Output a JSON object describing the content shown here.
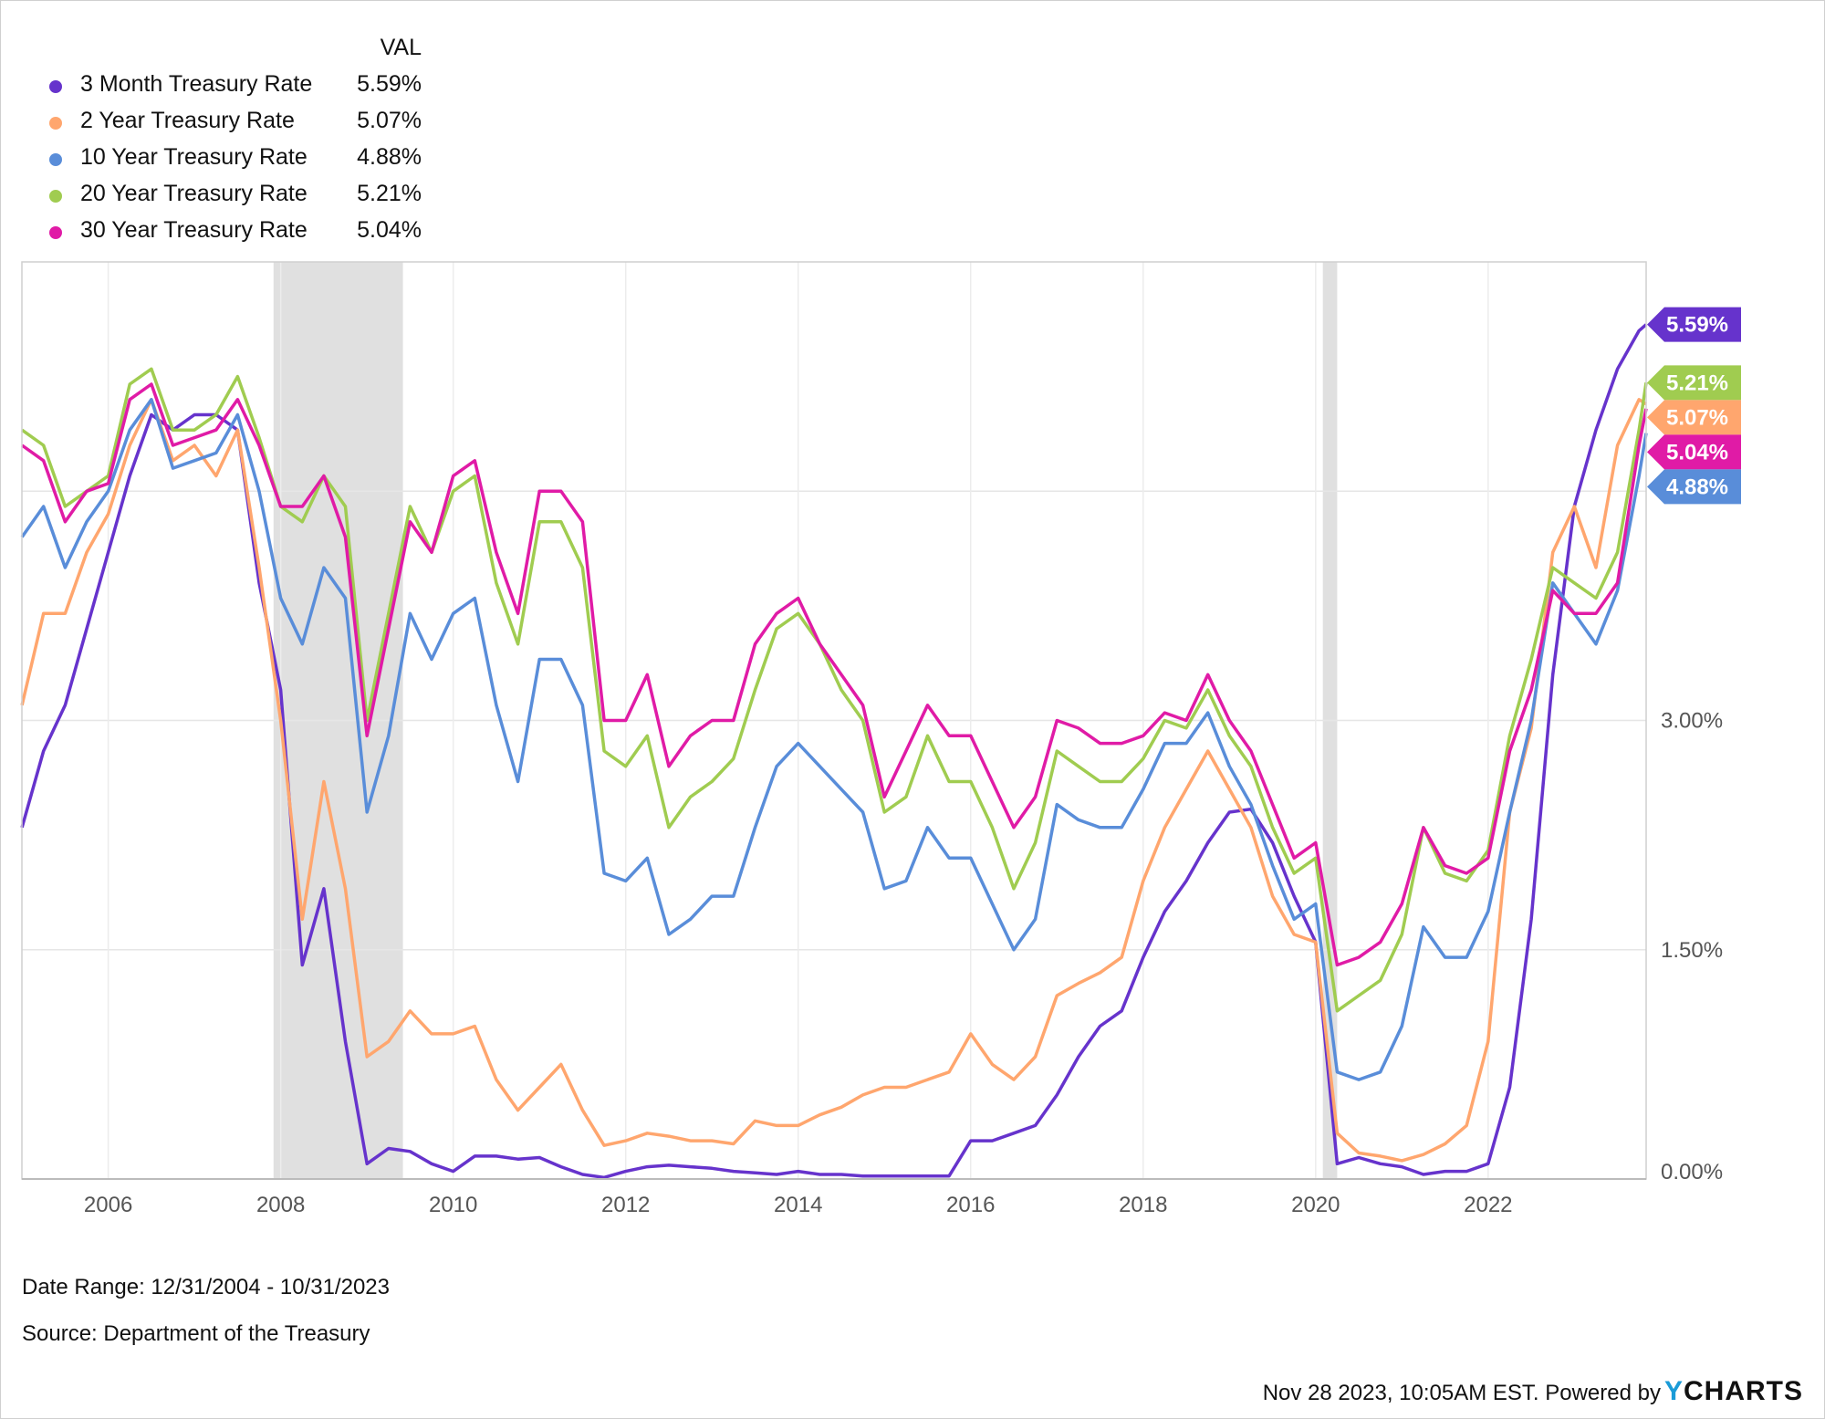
{
  "legend": {
    "header": "VAL",
    "items": [
      {
        "label": "3 Month Treasury Rate",
        "value": "5.59%",
        "color": "#6633cc"
      },
      {
        "label": "2 Year Treasury Rate",
        "value": "5.07%",
        "color": "#ffa66e"
      },
      {
        "label": "10 Year Treasury Rate",
        "value": "4.88%",
        "color": "#598dd9"
      },
      {
        "label": "20 Year Treasury Rate",
        "value": "5.21%",
        "color": "#a0cc50"
      },
      {
        "label": "30 Year Treasury Rate",
        "value": "5.04%",
        "color": "#e01ba6"
      }
    ]
  },
  "footer": {
    "date_range": "Date Range: 12/31/2004 - 10/31/2023",
    "source": "Source: Department of the Treasury",
    "timestamp": "Nov 28 2023, 10:05AM EST. Powered by",
    "brand_y": "Y",
    "brand_rest": "CHARTS"
  },
  "chart_data": {
    "type": "line",
    "xlabel": "",
    "ylabel": "",
    "xlim": [
      "2004-12-31",
      "2023-10-31"
    ],
    "ylim": [
      0,
      6
    ],
    "y_ticks": [
      0,
      1.5,
      3.0
    ],
    "y_tick_labels": [
      "0.00%",
      "1.50%",
      "3.00%"
    ],
    "y_gridlines": [
      0,
      1.5,
      3.0,
      4.5
    ],
    "x_ticks": [
      "2006",
      "2008",
      "2010",
      "2012",
      "2014",
      "2016",
      "2018",
      "2020",
      "2022"
    ],
    "grid": true,
    "legend_position": "top-left",
    "recessions": [
      [
        "2007-12",
        "2009-06"
      ],
      [
        "2020-02",
        "2020-04"
      ]
    ],
    "end_labels": [
      "5.59%",
      "5.21%",
      "5.07%",
      "5.04%",
      "4.88%"
    ],
    "x": [
      "2005-01",
      "2005-04",
      "2005-07",
      "2005-10",
      "2006-01",
      "2006-04",
      "2006-07",
      "2006-10",
      "2007-01",
      "2007-04",
      "2007-07",
      "2007-10",
      "2008-01",
      "2008-04",
      "2008-07",
      "2008-10",
      "2009-01",
      "2009-04",
      "2009-07",
      "2009-10",
      "2010-01",
      "2010-04",
      "2010-07",
      "2010-10",
      "2011-01",
      "2011-04",
      "2011-07",
      "2011-10",
      "2012-01",
      "2012-04",
      "2012-07",
      "2012-10",
      "2013-01",
      "2013-04",
      "2013-07",
      "2013-10",
      "2014-01",
      "2014-04",
      "2014-07",
      "2014-10",
      "2015-01",
      "2015-04",
      "2015-07",
      "2015-10",
      "2016-01",
      "2016-04",
      "2016-07",
      "2016-10",
      "2017-01",
      "2017-04",
      "2017-07",
      "2017-10",
      "2018-01",
      "2018-04",
      "2018-07",
      "2018-10",
      "2019-01",
      "2019-04",
      "2019-07",
      "2019-10",
      "2020-01",
      "2020-04",
      "2020-07",
      "2020-10",
      "2021-01",
      "2021-04",
      "2021-07",
      "2021-10",
      "2022-01",
      "2022-04",
      "2022-07",
      "2022-10",
      "2023-01",
      "2023-04",
      "2023-07",
      "2023-10",
      "2023-10-31"
    ],
    "series": [
      {
        "name": "3 Month Treasury Rate",
        "color": "#6633cc",
        "values": [
          2.3,
          2.8,
          3.1,
          3.6,
          4.1,
          4.6,
          5.0,
          4.9,
          5.0,
          5.0,
          4.9,
          3.9,
          3.2,
          1.4,
          1.9,
          0.9,
          0.1,
          0.2,
          0.18,
          0.1,
          0.05,
          0.15,
          0.15,
          0.13,
          0.14,
          0.08,
          0.03,
          0.01,
          0.05,
          0.08,
          0.09,
          0.08,
          0.07,
          0.05,
          0.04,
          0.03,
          0.05,
          0.03,
          0.03,
          0.02,
          0.02,
          0.02,
          0.02,
          0.02,
          0.25,
          0.25,
          0.3,
          0.35,
          0.55,
          0.8,
          1.0,
          1.1,
          1.45,
          1.75,
          1.95,
          2.2,
          2.4,
          2.42,
          2.2,
          1.85,
          1.55,
          0.1,
          0.14,
          0.1,
          0.08,
          0.03,
          0.05,
          0.05,
          0.1,
          0.6,
          1.7,
          3.3,
          4.4,
          4.9,
          5.3,
          5.55,
          5.59
        ]
      },
      {
        "name": "2 Year Treasury Rate",
        "color": "#ffa66e",
        "values": [
          3.1,
          3.7,
          3.7,
          4.1,
          4.35,
          4.8,
          5.1,
          4.7,
          4.8,
          4.6,
          4.9,
          4.0,
          3.0,
          1.7,
          2.6,
          1.9,
          0.8,
          0.9,
          1.1,
          0.95,
          0.95,
          1.0,
          0.65,
          0.45,
          0.6,
          0.75,
          0.45,
          0.22,
          0.25,
          0.3,
          0.28,
          0.25,
          0.25,
          0.23,
          0.38,
          0.35,
          0.35,
          0.42,
          0.47,
          0.55,
          0.6,
          0.6,
          0.65,
          0.7,
          0.95,
          0.75,
          0.65,
          0.8,
          1.2,
          1.28,
          1.35,
          1.45,
          1.95,
          2.3,
          2.55,
          2.8,
          2.55,
          2.3,
          1.85,
          1.6,
          1.55,
          0.3,
          0.17,
          0.15,
          0.12,
          0.16,
          0.23,
          0.35,
          0.9,
          2.4,
          2.95,
          4.1,
          4.4,
          4.0,
          4.8,
          5.1,
          5.07
        ]
      },
      {
        "name": "10 Year Treasury Rate",
        "color": "#598dd9",
        "values": [
          4.2,
          4.4,
          4.0,
          4.3,
          4.5,
          4.9,
          5.1,
          4.65,
          4.7,
          4.75,
          5.0,
          4.5,
          3.8,
          3.5,
          4.0,
          3.8,
          2.4,
          2.9,
          3.7,
          3.4,
          3.7,
          3.8,
          3.1,
          2.6,
          3.4,
          3.4,
          3.1,
          2.0,
          1.95,
          2.1,
          1.6,
          1.7,
          1.85,
          1.85,
          2.3,
          2.7,
          2.85,
          2.7,
          2.55,
          2.4,
          1.9,
          1.95,
          2.3,
          2.1,
          2.1,
          1.8,
          1.5,
          1.7,
          2.45,
          2.35,
          2.3,
          2.3,
          2.55,
          2.85,
          2.85,
          3.05,
          2.7,
          2.45,
          2.05,
          1.7,
          1.8,
          0.7,
          0.65,
          0.7,
          1.0,
          1.65,
          1.45,
          1.45,
          1.75,
          2.4,
          3.0,
          3.9,
          3.7,
          3.5,
          3.85,
          4.6,
          4.88
        ]
      },
      {
        "name": "20 Year Treasury Rate",
        "color": "#a0cc50",
        "values": [
          4.9,
          4.8,
          4.4,
          4.5,
          4.6,
          5.2,
          5.3,
          4.9,
          4.9,
          5.0,
          5.25,
          4.85,
          4.4,
          4.3,
          4.6,
          4.4,
          3.0,
          3.7,
          4.4,
          4.1,
          4.5,
          4.6,
          3.9,
          3.5,
          4.3,
          4.3,
          4.0,
          2.8,
          2.7,
          2.9,
          2.3,
          2.5,
          2.6,
          2.75,
          3.2,
          3.6,
          3.7,
          3.5,
          3.2,
          3.0,
          2.4,
          2.5,
          2.9,
          2.6,
          2.6,
          2.3,
          1.9,
          2.2,
          2.8,
          2.7,
          2.6,
          2.6,
          2.75,
          3.0,
          2.95,
          3.2,
          2.9,
          2.7,
          2.3,
          2.0,
          2.1,
          1.1,
          1.2,
          1.3,
          1.6,
          2.3,
          2.0,
          1.95,
          2.15,
          2.9,
          3.4,
          4.0,
          3.9,
          3.8,
          4.1,
          4.9,
          5.21
        ]
      },
      {
        "name": "30 Year Treasury Rate",
        "color": "#e01ba6",
        "values": [
          4.8,
          4.7,
          4.3,
          4.5,
          4.55,
          5.1,
          5.2,
          4.8,
          4.85,
          4.9,
          5.1,
          4.8,
          4.4,
          4.4,
          4.6,
          4.2,
          2.9,
          3.6,
          4.3,
          4.1,
          4.6,
          4.7,
          4.1,
          3.7,
          4.5,
          4.5,
          4.3,
          3.0,
          3.0,
          3.3,
          2.7,
          2.9,
          3.0,
          3.0,
          3.5,
          3.7,
          3.8,
          3.5,
          3.3,
          3.1,
          2.5,
          2.8,
          3.1,
          2.9,
          2.9,
          2.6,
          2.3,
          2.5,
          3.0,
          2.95,
          2.85,
          2.85,
          2.9,
          3.05,
          3.0,
          3.3,
          3.0,
          2.8,
          2.45,
          2.1,
          2.2,
          1.4,
          1.45,
          1.55,
          1.8,
          2.3,
          2.05,
          2.0,
          2.1,
          2.8,
          3.2,
          3.85,
          3.7,
          3.7,
          3.9,
          4.8,
          5.04
        ]
      }
    ]
  }
}
